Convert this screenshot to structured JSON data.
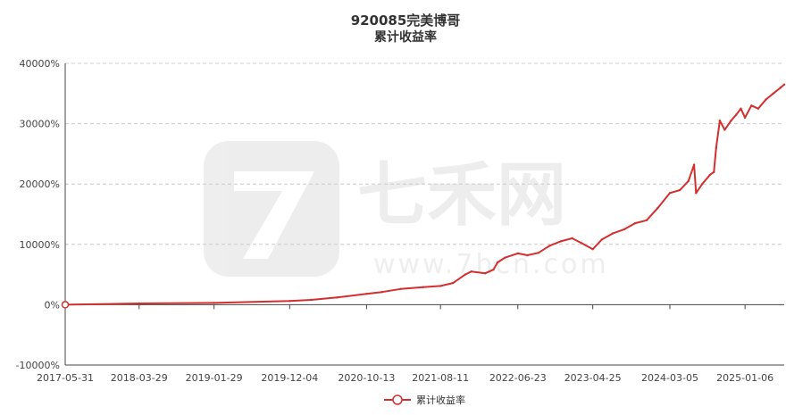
{
  "chart_data": {
    "type": "line",
    "title": "920085完美博哥",
    "subtitle": "累计收益率",
    "xlabel": "",
    "ylabel": "",
    "ylim": [
      -10000,
      40000
    ],
    "y_ticks": [
      -10000,
      0,
      10000,
      20000,
      30000,
      40000
    ],
    "y_tick_labels": [
      "-10000%",
      "0%",
      "10000%",
      "20000%",
      "30000%",
      "40000%"
    ],
    "x_ticks": [
      "2017-05-31",
      "2018-03-29",
      "2019-01-29",
      "2019-12-04",
      "2020-10-13",
      "2021-08-11",
      "2022-06-23",
      "2023-04-25",
      "2024-03-05",
      "2025-01-06"
    ],
    "x_range": [
      "2017-05-31",
      "2025-06-15"
    ],
    "grid": true,
    "legend_position": "bottom-center",
    "series": [
      {
        "name": "累计收益率",
        "color": "#d32f2f",
        "x": [
          "2017-05-31",
          "2018-03-29",
          "2019-01-29",
          "2019-12-04",
          "2020-03-01",
          "2020-06-15",
          "2020-10-13",
          "2020-12-15",
          "2021-03-01",
          "2021-06-01",
          "2021-08-11",
          "2021-10-01",
          "2021-11-20",
          "2021-12-15",
          "2022-02-10",
          "2022-03-15",
          "2022-04-01",
          "2022-05-01",
          "2022-06-23",
          "2022-08-01",
          "2022-09-15",
          "2022-11-01",
          "2022-12-15",
          "2023-01-31",
          "2023-03-10",
          "2023-04-25",
          "2023-06-01",
          "2023-07-15",
          "2023-09-01",
          "2023-10-15",
          "2023-12-01",
          "2024-01-15",
          "2024-03-05",
          "2024-04-15",
          "2024-05-20",
          "2024-06-12",
          "2024-06-20",
          "2024-07-15",
          "2024-08-15",
          "2024-09-01",
          "2024-09-10",
          "2024-09-25",
          "2024-10-15",
          "2024-11-10",
          "2024-12-01",
          "2024-12-20",
          "2025-01-06",
          "2025-02-01",
          "2025-03-01",
          "2025-04-01",
          "2025-05-01",
          "2025-06-01",
          "2025-06-15"
        ],
        "values": [
          0,
          200,
          300,
          600,
          800,
          1200,
          1800,
          2100,
          2600,
          2900,
          3100,
          3600,
          5000,
          5500,
          5200,
          5800,
          7000,
          7800,
          8500,
          8200,
          8600,
          9800,
          10500,
          11000,
          10200,
          9200,
          10800,
          11800,
          12500,
          13500,
          14000,
          16000,
          18500,
          19000,
          20500,
          23200,
          18500,
          20000,
          21500,
          22000,
          26000,
          30500,
          29000,
          30500,
          31500,
          32500,
          31000,
          33000,
          32500,
          34000,
          35000,
          36000,
          36500
        ]
      }
    ]
  },
  "watermark": {
    "brand": "七禾网",
    "url": "www.7hcn.com"
  }
}
